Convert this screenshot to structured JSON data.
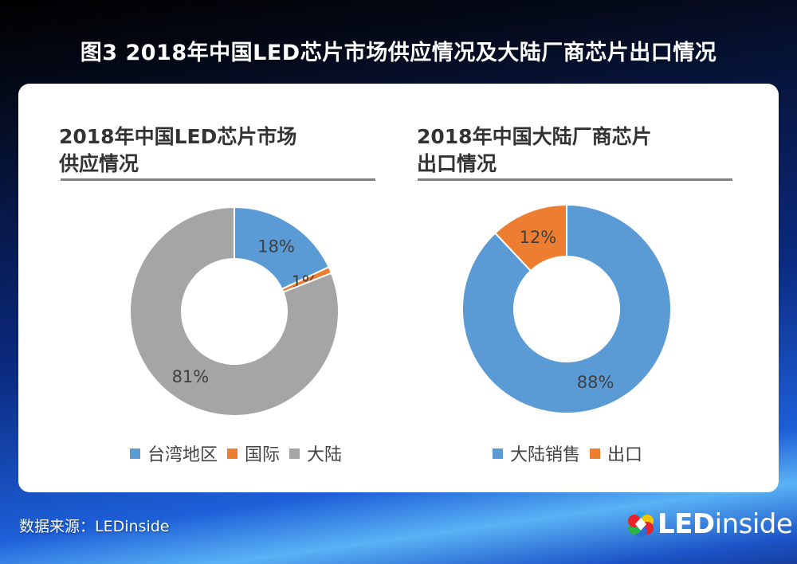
{
  "title": "图3 2018年中国LED芯片市场供应情况及大陆厂商芯片出口情况",
  "source": "数据来源：LEDinside",
  "logo": {
    "bold": "LED",
    "rest": "inside"
  },
  "colors": {
    "blue": "#5b9bd5",
    "orange": "#ed7d31",
    "gray": "#a5a5a5"
  },
  "chart_data": [
    {
      "type": "pie",
      "title_line1": "2018年中国LED芯片市场",
      "title_line2": "供应情况",
      "labels": [
        "台湾地区",
        "国际",
        "大陆"
      ],
      "values": [
        18,
        1,
        81
      ],
      "value_labels": [
        "18%",
        "1%",
        "81%"
      ],
      "donut": true,
      "legend": "bottom"
    },
    {
      "type": "pie",
      "title_line1": "2018年中国大陆厂商芯片",
      "title_line2": "出口情况",
      "labels": [
        "大陆销售",
        "出口"
      ],
      "values": [
        88,
        12
      ],
      "value_labels": [
        "88%",
        "12%"
      ],
      "donut": true,
      "legend": "bottom"
    }
  ]
}
